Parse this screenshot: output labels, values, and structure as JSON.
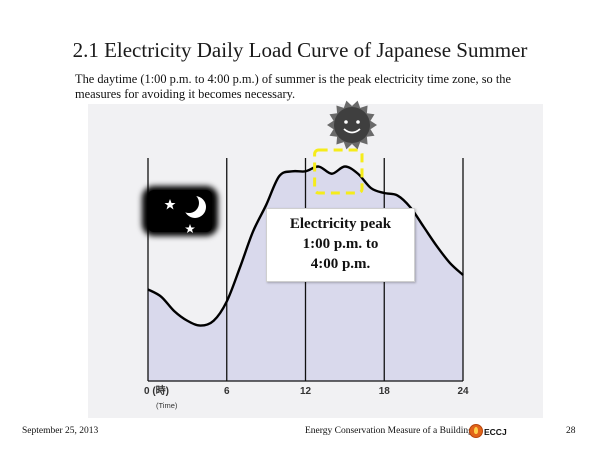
{
  "title": "2.1  Electricity Daily Load Curve of Japanese Summer",
  "description": "The daytime (1:00 p.m. to 4:00 p.m.) of summer is the peak electricity time zone, so the measures for avoiding it becomes necessary.",
  "callout": {
    "line1": "Electricity peak",
    "line2": "1:00 p.m. to",
    "line3": "4:00 p.m."
  },
  "chart_data": {
    "type": "area",
    "x_tick_labels": [
      "0 (時)",
      "6",
      "12",
      "18",
      "24"
    ],
    "x_unit_label": "(Time)",
    "xlim": [
      0,
      24
    ],
    "x": [
      0,
      1,
      2,
      3,
      4,
      5,
      6,
      7,
      8,
      9,
      10,
      11,
      12,
      13,
      14,
      15,
      16,
      17,
      18,
      19,
      20,
      21,
      22,
      23,
      24
    ],
    "series": [
      {
        "values": [
          0.38,
          0.35,
          0.29,
          0.25,
          0.23,
          0.25,
          0.33,
          0.47,
          0.62,
          0.73,
          0.85,
          0.87,
          0.87,
          0.89,
          0.86,
          0.89,
          0.86,
          0.8,
          0.78,
          0.77,
          0.72,
          0.64,
          0.56,
          0.49,
          0.44
        ]
      }
    ],
    "ylim": [
      0,
      1
    ],
    "grid": "vertical",
    "highlight": {
      "x_start": 13,
      "x_end": 16,
      "style": "dashed-yellow"
    },
    "icons": [
      "night-moon-stars-icon",
      "sun-face-icon"
    ],
    "colors": {
      "fill": "#d9d9ec",
      "line": "#000000",
      "highlight": "#f5ec1a"
    }
  },
  "footer": {
    "date": "September 25, 2013",
    "center": "Energy Conservation Measure of a Building",
    "org": "ECCJ",
    "page": "28"
  }
}
